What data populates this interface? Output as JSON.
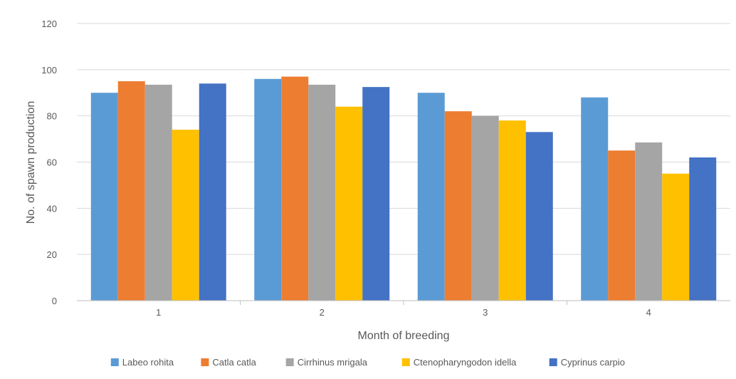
{
  "chart_data": {
    "type": "bar",
    "title": "",
    "xlabel": "Month of breeding",
    "ylabel": "No. of spawn production",
    "ylim": [
      0,
      120
    ],
    "yticks": [
      0,
      20,
      40,
      60,
      80,
      100,
      120
    ],
    "grid": true,
    "legend_position": "bottom",
    "categories": [
      "1",
      "2",
      "3",
      "4"
    ],
    "series": [
      {
        "name": "Labeo rohita",
        "color": "#5B9BD5",
        "values": [
          90,
          96,
          90,
          88
        ]
      },
      {
        "name": "Catla catla",
        "color": "#ED7D31",
        "values": [
          95,
          97,
          82,
          65
        ]
      },
      {
        "name": "Cirrhinus mrigala",
        "color": "#A5A5A5",
        "values": [
          93.5,
          93.5,
          80,
          68.5
        ]
      },
      {
        "name": "Ctenopharyngodon idella",
        "color": "#FFC000",
        "values": [
          74,
          84,
          78,
          55
        ]
      },
      {
        "name": "Cyprinus carpio",
        "color": "#4472C4",
        "values": [
          94,
          92.5,
          73,
          62
        ]
      }
    ]
  }
}
